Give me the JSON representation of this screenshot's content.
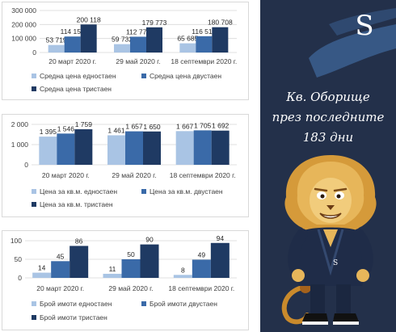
{
  "panel": {
    "title_lines": [
      "Кв. Оборище",
      "през последните",
      "183 дни"
    ],
    "logo_letter": "S",
    "colors": {
      "background": "#23304a",
      "brush": "#3b5f8f"
    }
  },
  "chart_data": [
    {
      "type": "bar",
      "categories": [
        "20 март 2020 г.",
        "29 май 2020 г.",
        "18 септември 2020 г."
      ],
      "series": [
        {
          "name": "Средна цена едностаен",
          "values": [
            53719,
            59732,
            65685
          ],
          "labels": [
            "53 719",
            "59 732",
            "65 685"
          ],
          "color": "#a9c4e4"
        },
        {
          "name": "Средна цена двустаен",
          "values": [
            114156,
            112778,
            116518
          ],
          "labels": [
            "114 156",
            "112 778",
            "116 518"
          ],
          "color": "#3a6aa8"
        },
        {
          "name": "Средна цена тристаен",
          "values": [
            200118,
            179773,
            180708
          ],
          "labels": [
            "200 118",
            "179 773",
            "180 708"
          ],
          "color": "#1f3a63"
        }
      ],
      "yticks": [
        0,
        100000,
        200000,
        300000
      ],
      "ytick_labels": [
        "0",
        "100 000",
        "200 000",
        "300 000"
      ],
      "ylim": [
        0,
        300000
      ],
      "grid": true,
      "legend": "bottom"
    },
    {
      "type": "bar",
      "categories": [
        "20 март 2020 г.",
        "29 май 2020 г.",
        "18 септември 2020 г."
      ],
      "series": [
        {
          "name": "Цена за кв.м. едностаен",
          "values": [
            1395,
            1461,
            1667
          ],
          "labels": [
            "1 395",
            "1 461",
            "1 667"
          ],
          "color": "#a9c4e4"
        },
        {
          "name": "Цена за кв.м. двустаен",
          "values": [
            1546,
            1657,
            1705
          ],
          "labels": [
            "1 546",
            "1 657",
            "1 705"
          ],
          "color": "#3a6aa8"
        },
        {
          "name": "Цена за кв.м. тристаен",
          "values": [
            1759,
            1650,
            1692
          ],
          "labels": [
            "1 759",
            "1 650",
            "1 692"
          ],
          "color": "#1f3a63"
        }
      ],
      "yticks": [
        0,
        1000,
        2000
      ],
      "ytick_labels": [
        "0",
        "1 000",
        "2 000"
      ],
      "ylim": [
        0,
        2000
      ],
      "grid": true,
      "legend": "bottom"
    },
    {
      "type": "bar",
      "categories": [
        "20 март 2020 г.",
        "29 май 2020 г.",
        "18 септември 2020 г."
      ],
      "series": [
        {
          "name": "Брой имоти едностаен",
          "values": [
            14,
            11,
            8
          ],
          "labels": [
            "14",
            "11",
            "8"
          ],
          "color": "#a9c4e4"
        },
        {
          "name": "Брой имоти двустаен",
          "values": [
            45,
            50,
            49
          ],
          "labels": [
            "45",
            "50",
            "49"
          ],
          "color": "#3a6aa8"
        },
        {
          "name": "Брой имоти тристаен",
          "values": [
            86,
            90,
            94
          ],
          "labels": [
            "86",
            "90",
            "94"
          ],
          "color": "#1f3a63"
        }
      ],
      "yticks": [
        0,
        50,
        100
      ],
      "ytick_labels": [
        "0",
        "50",
        "100"
      ],
      "ylim": [
        0,
        100
      ],
      "grid": true,
      "legend": "bottom"
    }
  ]
}
